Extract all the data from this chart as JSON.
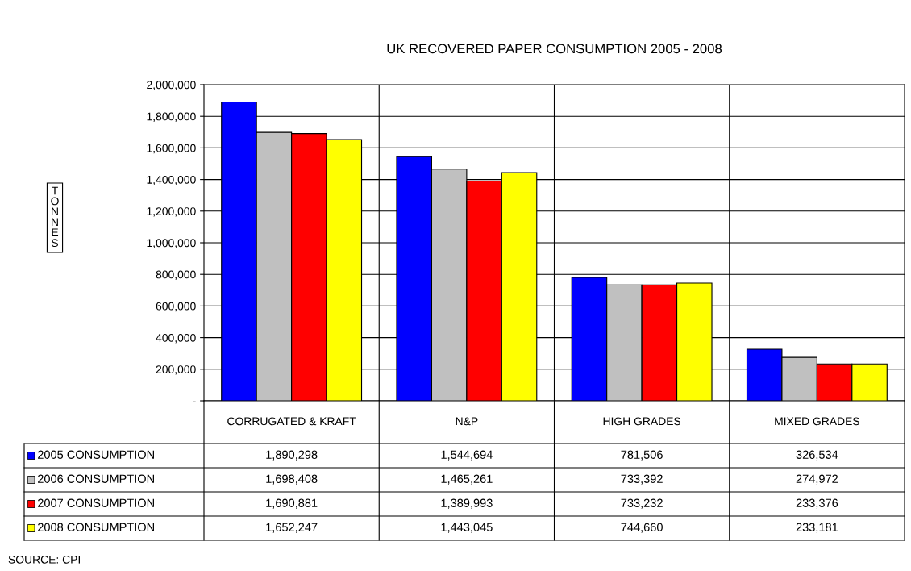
{
  "chart_data": {
    "type": "bar",
    "title": "UK RECOVERED PAPER CONSUMPTION 2005 - 2008",
    "categories": [
      "CORRUGATED & KRAFT",
      "N&P",
      "HIGH GRADES",
      "MIXED GRADES"
    ],
    "series": [
      {
        "name": "2005 CONSUMPTION",
        "color": "#0000ff",
        "values": [
          1890298,
          1544694,
          781506,
          326534
        ],
        "value_labels": [
          "1,890,298",
          "1,544,694",
          "781,506",
          "326,534"
        ]
      },
      {
        "name": "2006 CONSUMPTION",
        "color": "#c0c0c0",
        "values": [
          1698408,
          1465261,
          733392,
          274972
        ],
        "value_labels": [
          "1,698,408",
          "1,465,261",
          "733,392",
          "274,972"
        ]
      },
      {
        "name": "2007 CONSUMPTION",
        "color": "#ff0000",
        "values": [
          1690881,
          1389993,
          733232,
          233376
        ],
        "value_labels": [
          "1,690,881",
          "1,389,993",
          "733,232",
          "233,376"
        ]
      },
      {
        "name": "2008 CONSUMPTION",
        "color": "#ffff00",
        "values": [
          1652247,
          1443045,
          744660,
          233181
        ],
        "value_labels": [
          "1,652,247",
          "1,443,045",
          "744,660",
          "233,181"
        ]
      }
    ],
    "ylim": [
      0,
      2000000
    ],
    "yticks": [
      {
        "value": 0,
        "label": "-"
      },
      {
        "value": 200000,
        "label": "200,000"
      },
      {
        "value": 400000,
        "label": "400,000"
      },
      {
        "value": 600000,
        "label": "600,000"
      },
      {
        "value": 800000,
        "label": "800,000"
      },
      {
        "value": 1000000,
        "label": "1,000,000"
      },
      {
        "value": 1200000,
        "label": "1,200,000"
      },
      {
        "value": 1400000,
        "label": "1,400,000"
      },
      {
        "value": 1600000,
        "label": "1,600,000"
      },
      {
        "value": 1800000,
        "label": "1,800,000"
      },
      {
        "value": 2000000,
        "label": "2,000,000"
      }
    ],
    "grid": true,
    "legend": "bottom",
    "annotations": [
      "TONNES",
      "SOURCE: CPI"
    ]
  }
}
